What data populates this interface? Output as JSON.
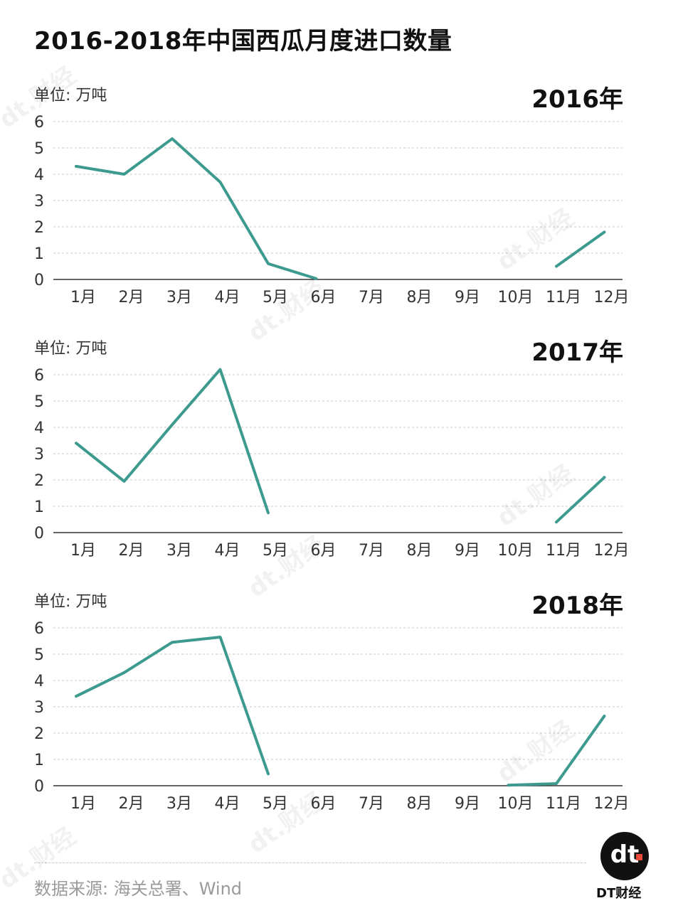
{
  "title": "2016-2018年中国西瓜月度进口数量",
  "unit_label": "单位: 万吨",
  "source": "数据来源: 海关总署、Wind",
  "brand": {
    "logo_text": "dt",
    "name": "DT财经"
  },
  "watermark": "dt.财经",
  "colors": {
    "line": "#3d9a8f",
    "grid": "#c9c9c9",
    "axis": "#333333",
    "brand_dot": "#e8493a"
  },
  "chart_data": [
    {
      "type": "line",
      "title": "2016年",
      "ylabel": "单位: 万吨",
      "ylim": [
        0,
        6
      ],
      "yticks": [
        0,
        1,
        2,
        3,
        4,
        5,
        6
      ],
      "categories": [
        "1月",
        "2月",
        "3月",
        "4月",
        "5月",
        "6月",
        "7月",
        "8月",
        "9月",
        "10月",
        "11月",
        "12月"
      ],
      "values": [
        4.3,
        4.0,
        5.35,
        3.7,
        0.6,
        0.03,
        null,
        null,
        null,
        null,
        0.5,
        1.8
      ],
      "grid": true
    },
    {
      "type": "line",
      "title": "2017年",
      "ylabel": "单位: 万吨",
      "ylim": [
        0,
        6
      ],
      "yticks": [
        0,
        1,
        2,
        3,
        4,
        5,
        6
      ],
      "categories": [
        "1月",
        "2月",
        "3月",
        "4月",
        "5月",
        "6月",
        "7月",
        "8月",
        "9月",
        "10月",
        "11月",
        "12月"
      ],
      "values": [
        3.4,
        1.95,
        4.1,
        6.2,
        0.75,
        null,
        null,
        null,
        null,
        null,
        0.4,
        2.1
      ],
      "grid": true
    },
    {
      "type": "line",
      "title": "2018年",
      "ylabel": "单位: 万吨",
      "ylim": [
        0,
        6
      ],
      "yticks": [
        0,
        1,
        2,
        3,
        4,
        5,
        6
      ],
      "categories": [
        "1月",
        "2月",
        "3月",
        "4月",
        "5月",
        "6月",
        "7月",
        "8月",
        "9月",
        "10月",
        "11月",
        "12月"
      ],
      "values": [
        3.4,
        4.3,
        5.45,
        5.65,
        0.45,
        null,
        null,
        null,
        null,
        0.02,
        0.08,
        2.65
      ],
      "grid": true
    }
  ]
}
